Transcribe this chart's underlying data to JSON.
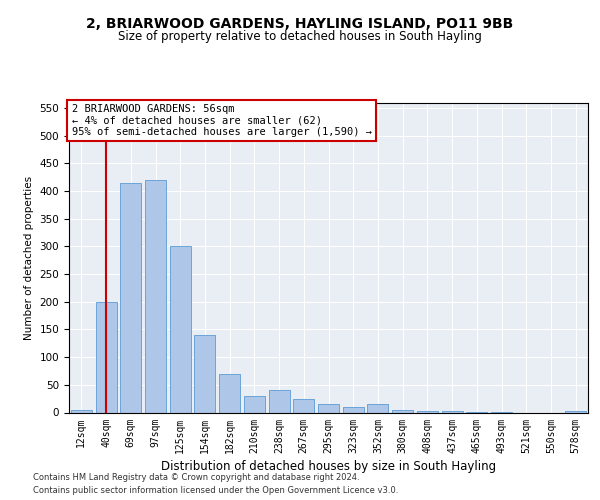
{
  "title": "2, BRIARWOOD GARDENS, HAYLING ISLAND, PO11 9BB",
  "subtitle": "Size of property relative to detached houses in South Hayling",
  "xlabel": "Distribution of detached houses by size in South Hayling",
  "ylabel": "Number of detached properties",
  "categories": [
    "12sqm",
    "40sqm",
    "69sqm",
    "97sqm",
    "125sqm",
    "154sqm",
    "182sqm",
    "210sqm",
    "238sqm",
    "267sqm",
    "295sqm",
    "323sqm",
    "352sqm",
    "380sqm",
    "408sqm",
    "437sqm",
    "465sqm",
    "493sqm",
    "521sqm",
    "550sqm",
    "578sqm"
  ],
  "values": [
    5,
    200,
    415,
    420,
    300,
    140,
    70,
    30,
    40,
    25,
    15,
    10,
    15,
    5,
    2,
    2,
    1,
    1,
    0,
    0,
    2
  ],
  "bar_color": "#aec6e8",
  "bar_edge_color": "#5b9bd5",
  "background_color": "#e8eef4",
  "vline_x_index": 1,
  "vline_color": "#cc0000",
  "annotation_text": "2 BRIARWOOD GARDENS: 56sqm\n← 4% of detached houses are smaller (62)\n95% of semi-detached houses are larger (1,590) →",
  "annotation_box_facecolor": "#ffffff",
  "annotation_box_edgecolor": "#cc0000",
  "footer_line1": "Contains HM Land Registry data © Crown copyright and database right 2024.",
  "footer_line2": "Contains public sector information licensed under the Open Government Licence v3.0.",
  "ylim": [
    0,
    560
  ],
  "yticks": [
    0,
    50,
    100,
    150,
    200,
    250,
    300,
    350,
    400,
    450,
    500,
    550
  ],
  "title_fontsize": 10,
  "subtitle_fontsize": 8.5,
  "xlabel_fontsize": 8.5,
  "ylabel_fontsize": 7.5,
  "xtick_fontsize": 7,
  "ytick_fontsize": 7.5
}
